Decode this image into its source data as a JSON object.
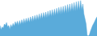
{
  "chart_data": {
    "type": "area",
    "values": [
      55,
      40,
      50,
      45,
      60,
      55,
      65,
      50,
      55,
      42,
      58,
      48,
      62,
      52,
      68,
      58,
      70,
      55,
      72,
      58,
      75,
      60,
      78,
      62,
      80,
      65,
      82,
      65,
      85,
      68,
      88,
      70,
      90,
      72,
      92,
      74,
      95,
      76,
      98,
      78,
      100,
      80,
      102,
      82,
      105,
      84,
      108,
      86,
      110,
      88,
      112,
      90,
      115,
      92,
      118,
      94,
      120,
      95,
      122,
      96,
      125,
      98,
      128,
      100,
      130,
      102,
      132,
      104,
      135,
      105,
      138,
      106,
      140,
      108,
      142,
      110,
      130,
      95,
      78,
      60,
      20,
      18,
      22,
      35,
      45,
      55,
      62,
      70,
      78,
      85
    ],
    "color": "#5aabda",
    "xlim": [
      0,
      89
    ],
    "ylim": [
      18,
      144
    ],
    "grid": false,
    "tick_labels": false
  }
}
